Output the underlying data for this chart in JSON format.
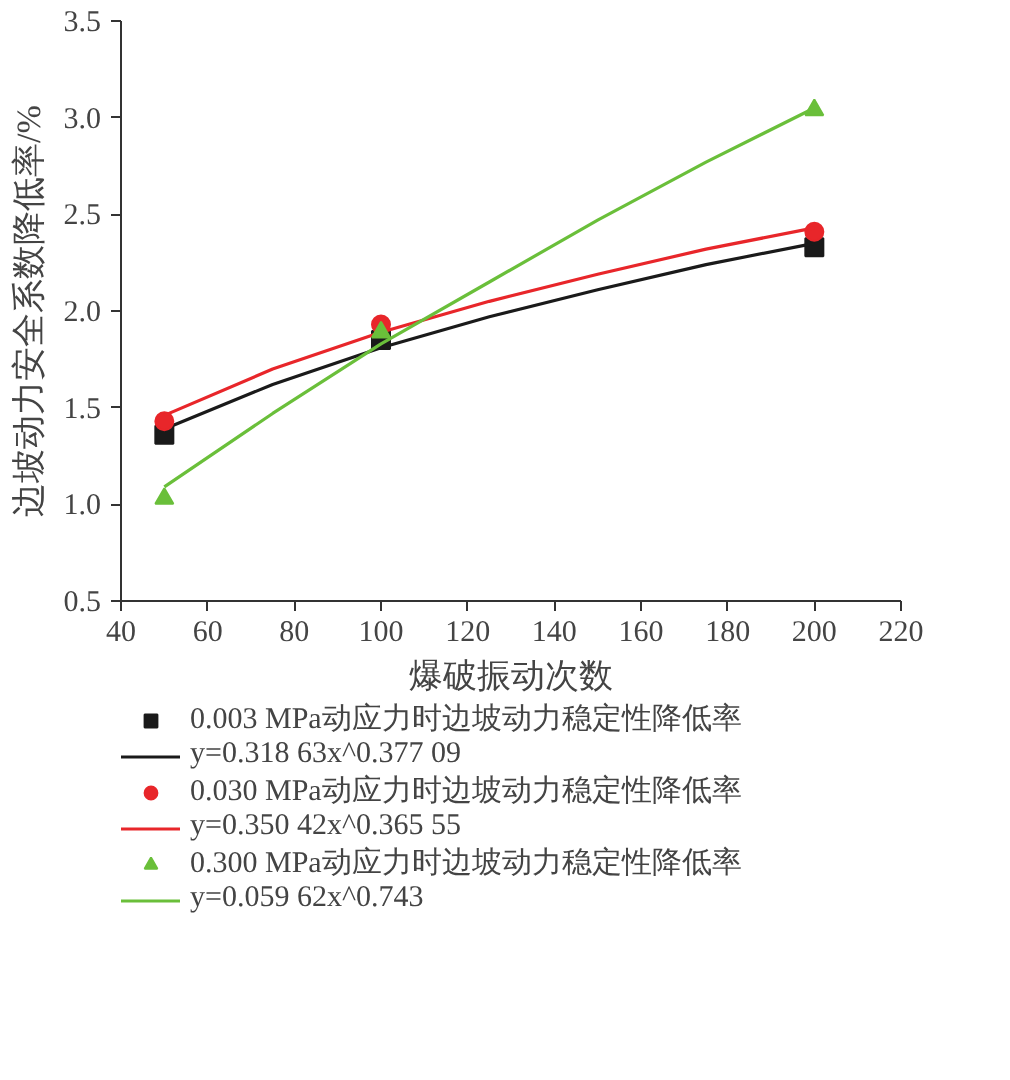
{
  "chart_data": {
    "type": "scatter",
    "xlabel": "爆破振动次数",
    "ylabel": "边坡动力安全系数降低率/%",
    "xlim": [
      40,
      220
    ],
    "ylim": [
      0.5,
      3.5
    ],
    "xticks": [
      40,
      60,
      80,
      100,
      120,
      140,
      160,
      180,
      200,
      220
    ],
    "yticks": [
      0.5,
      {
        "value": 1,
        "label": "1.0"
      },
      1.5,
      {
        "value": 2,
        "label": "2.0"
      },
      2.5,
      {
        "value": 3,
        "label": "3.0"
      },
      3.5
    ],
    "grid": false,
    "legend": "bottom",
    "series": [
      {
        "marker": "square",
        "name": "0.003 MPa动应力时边坡动力稳定性降低率",
        "color": "#1a1a1a",
        "x": [
          50,
          100,
          200
        ],
        "values": [
          1.36,
          1.85,
          2.33
        ]
      },
      {
        "type": "line",
        "name": "y=0.318 63x^0.377 09",
        "color": "#1a1a1a",
        "x": [
          50,
          75,
          100,
          125,
          150,
          175,
          200
        ],
        "values": [
          1.39,
          1.62,
          1.81,
          1.97,
          2.11,
          2.24,
          2.35
        ]
      },
      {
        "marker": "circle",
        "name": "0.030 MPa动应力时边坡动力稳定性降低率",
        "color": "#e8262a",
        "x": [
          50,
          100,
          200
        ],
        "values": [
          1.43,
          1.93,
          2.41
        ]
      },
      {
        "type": "line",
        "name": "y=0.350 42x^0.365 55",
        "color": "#e8262a",
        "x": [
          50,
          75,
          100,
          125,
          150,
          175,
          200
        ],
        "values": [
          1.46,
          1.7,
          1.89,
          2.05,
          2.19,
          2.32,
          2.43
        ]
      },
      {
        "marker": "triangle",
        "name": "0.300 MPa动应力时边坡动力稳定性降低率",
        "color": "#6abf3a",
        "x": [
          50,
          100,
          200
        ],
        "values": [
          1.03,
          1.89,
          3.04
        ]
      },
      {
        "type": "line",
        "name": "y=0.059 62x^0.743",
        "color": "#6abf3a",
        "x": [
          50,
          75,
          100,
          125,
          150,
          175,
          200
        ],
        "values": [
          1.09,
          1.47,
          1.83,
          2.15,
          2.47,
          2.77,
          3.05
        ]
      }
    ]
  }
}
